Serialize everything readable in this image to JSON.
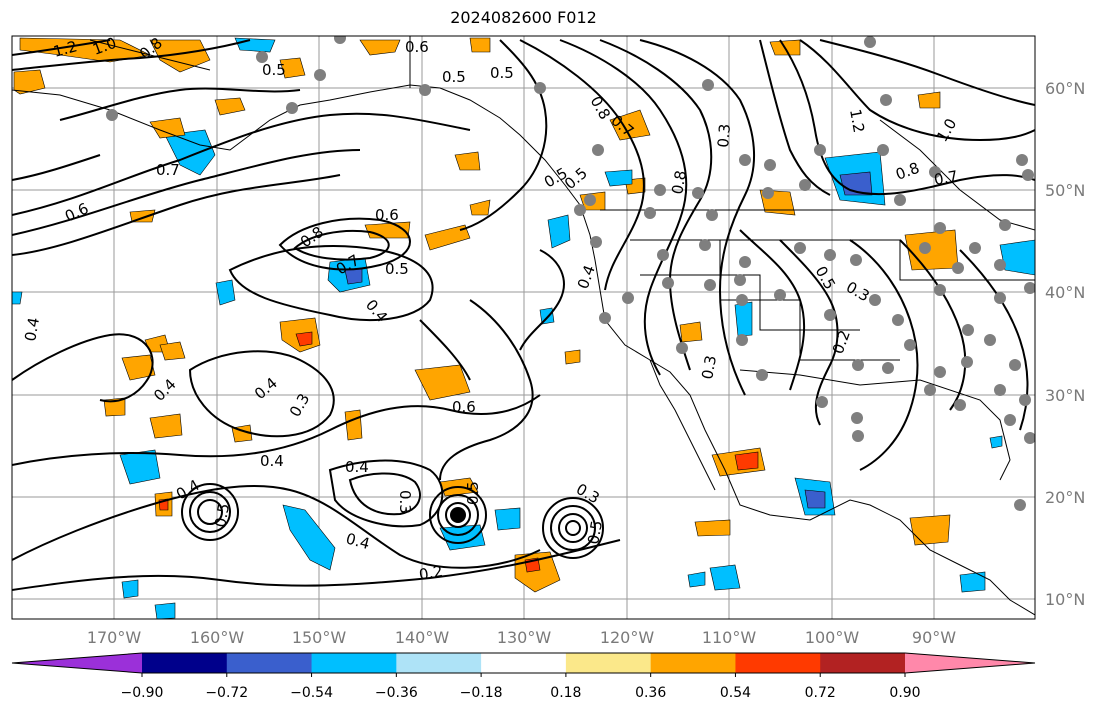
{
  "title": "2024082600 F012",
  "lon_labels": [
    "170°W",
    "160°W",
    "150°W",
    "140°W",
    "130°W",
    "120°W",
    "110°W",
    "100°W",
    "90°W"
  ],
  "lat_labels": [
    "60°N",
    "50°N",
    "40°N",
    "30°N",
    "20°N",
    "10°N"
  ],
  "colorbar": {
    "ticks": [
      "−0.90",
      "−0.72",
      "−0.54",
      "−0.36",
      "−0.18",
      "0.18",
      "0.36",
      "0.54",
      "0.72",
      "0.90"
    ],
    "colors": [
      "#9b30d9",
      "#00008b",
      "#3a5fcd",
      "#00bfff",
      "#aee3f7",
      "#ffffff",
      "#fbe88a",
      "#ffa500",
      "#ff3a00",
      "#b22222",
      "#ff88aa"
    ]
  },
  "contour_labels": [
    "1.2",
    "1.0",
    "0.8",
    "0.6",
    "0.5",
    "0.5",
    "0.5",
    "0.7",
    "0.6",
    "0.6",
    "0.8",
    "0.7",
    "0.5",
    "0.4",
    "0.4",
    "0.4",
    "0.4",
    "0.3",
    "0.4",
    "0.4",
    "0.4",
    "0.6",
    "0.3",
    "0.5",
    "0.4",
    "0.2",
    "0.3",
    "0.3",
    "0.5",
    "0.8",
    "0.7",
    "0.5",
    "0.8",
    "0.3",
    "1.2",
    "1.0",
    "0.8",
    "0.7",
    "0.5",
    "0.2",
    "0.3",
    "0.4",
    "0.5",
    "0.5"
  ]
}
